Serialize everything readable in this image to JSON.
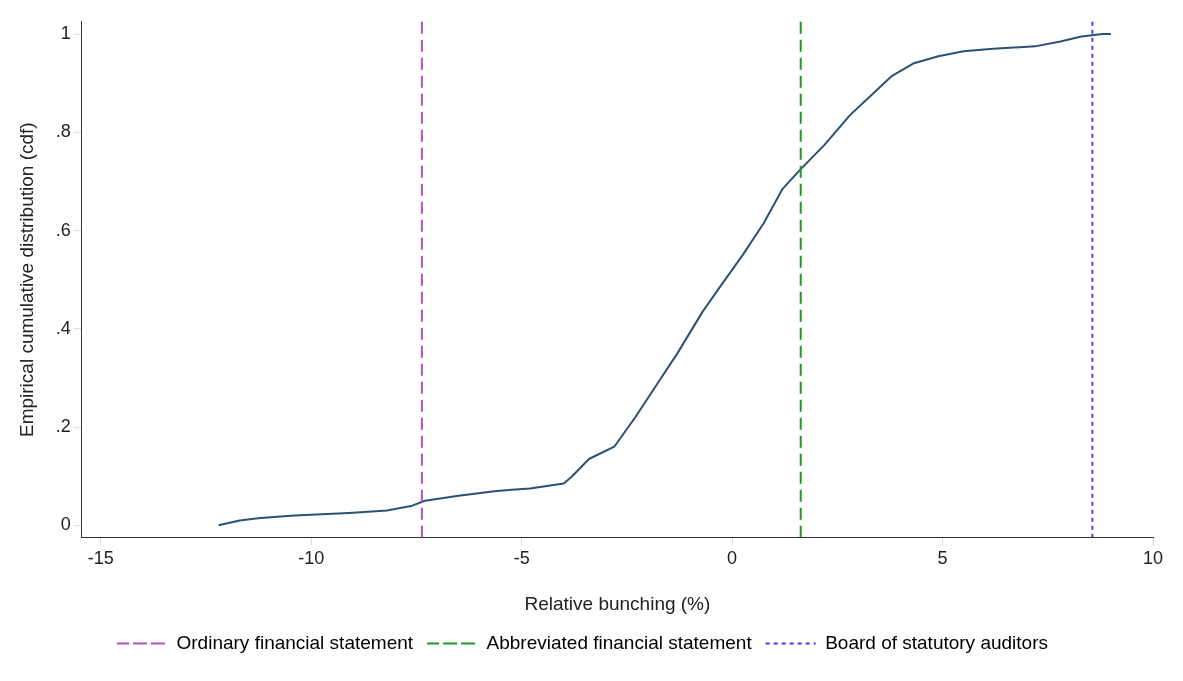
{
  "chart_data": {
    "type": "line",
    "xlabel": "Relative bunching (%)",
    "ylabel": "Empirical cumulative distribution (cdf)",
    "xlim": [
      -15.45,
      10
    ],
    "xticks": [
      -15,
      -10,
      -5,
      0,
      5,
      10
    ],
    "ylim": [
      -0.025,
      1.025
    ],
    "yticks": [
      0,
      {
        "value": 0.2,
        "label": ".2"
      },
      {
        "value": 0.4,
        "label": ".4"
      },
      {
        "value": 0.6,
        "label": ".6"
      },
      {
        "value": 0.8,
        "label": ".8"
      },
      1
    ],
    "grid": false,
    "legend": "bottom",
    "marker": "none",
    "line_style": "solid",
    "series": [
      {
        "color": "#2b5173",
        "x": [
          -12.2,
          -11.7,
          -11.2,
          -10.4,
          -9.1,
          -8.2,
          -7.6,
          -7.3,
          -6.5,
          -5.6,
          -4.8,
          -4.0,
          -3.8,
          -3.4,
          -2.8,
          -2.3,
          -1.8,
          -1.3,
          -0.7,
          -0.25,
          0.25,
          0.75,
          1.2,
          1.63,
          2.2,
          2.8,
          3.3,
          3.8,
          4.3,
          4.9,
          5.5,
          6.2,
          7.2,
          7.8,
          8.3,
          8.8,
          9.0
        ],
        "values": [
          0.0,
          0.01,
          0.015,
          0.02,
          0.025,
          0.03,
          0.04,
          0.05,
          0.06,
          0.07,
          0.075,
          0.085,
          0.1,
          0.135,
          0.16,
          0.22,
          0.285,
          0.35,
          0.435,
          0.49,
          0.55,
          0.615,
          0.685,
          0.725,
          0.775,
          0.835,
          0.875,
          0.915,
          0.94,
          0.955,
          0.965,
          0.97,
          0.975,
          0.985,
          0.995,
          1.0,
          1.0
        ]
      }
    ],
    "ref_lines": [
      {
        "axis": "x",
        "value": -7.37,
        "label": "Ordinary financial statement",
        "color": "#b653b6",
        "line_style": "dashed"
      },
      {
        "axis": "x",
        "value": 1.63,
        "label": "Abbreviated financial statement",
        "color": "#1f9a1f",
        "line_style": "dashed"
      },
      {
        "axis": "x",
        "value": 8.56,
        "label": "Board of statutory auditors",
        "color": "#3b3bff",
        "line_style": "dotted"
      }
    ]
  }
}
